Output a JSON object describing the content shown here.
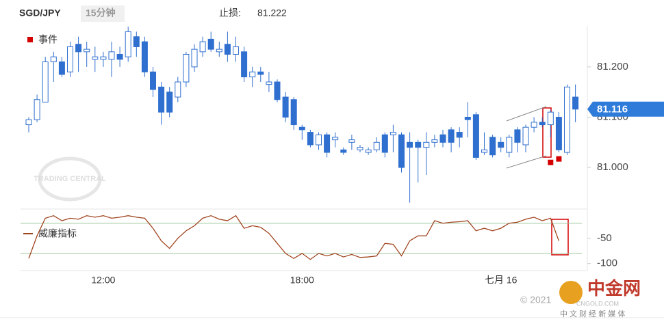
{
  "header": {
    "symbol": "SGD/JPY",
    "interval": "15分钟",
    "stop_label": "止损:",
    "stop_value": 81.222
  },
  "chart_data": [
    {
      "type": "candlestick",
      "legend": "事件",
      "color": "#2f6fcf",
      "event_color": "#d40000",
      "categories": [
        null,
        null,
        null,
        null,
        null,
        null,
        null,
        null,
        null,
        "12:00",
        null,
        null,
        null,
        null,
        null,
        null,
        null,
        null,
        null,
        null,
        null,
        null,
        null,
        null,
        null,
        null,
        null,
        null,
        null,
        null,
        null,
        null,
        null,
        "18:00",
        null,
        null,
        null,
        null,
        null,
        null,
        null,
        null,
        null,
        null,
        null,
        null,
        null,
        null,
        null,
        null,
        null,
        null,
        null,
        null,
        null,
        null,
        null,
        "七月 16",
        null,
        null,
        null,
        null,
        null,
        null,
        null,
        null,
        null
      ],
      "open": [
        81.085,
        81.095,
        81.13,
        81.21,
        81.21,
        81.19,
        81.245,
        81.23,
        81.215,
        81.215,
        81.215,
        81.225,
        81.22,
        81.26,
        81.25,
        81.19,
        81.16,
        81.15,
        81.14,
        81.17,
        81.2,
        81.23,
        81.255,
        81.23,
        81.245,
        81.225,
        81.23,
        81.18,
        81.19,
        81.165,
        81.17,
        81.14,
        81.135,
        81.08,
        81.07,
        81.045,
        81.065,
        81.055,
        81.035,
        81.05,
        81.035,
        81.03,
        81.035,
        81.065,
        81.065,
        81.065,
        81.05,
        81.05,
        81.04,
        81.05,
        81.065,
        81.075,
        81.07,
        81.1,
        81.105,
        81.03,
        81.06,
        81.05,
        81.03,
        81.075,
        81.045,
        81.08,
        81.09,
        81.085,
        81.1,
        81.03,
        81.14
      ],
      "high": [
        81.1,
        81.145,
        81.22,
        81.23,
        81.22,
        81.25,
        81.26,
        81.25,
        81.24,
        81.23,
        81.25,
        81.24,
        81.28,
        81.27,
        81.26,
        81.2,
        81.17,
        81.16,
        81.18,
        81.23,
        81.245,
        81.26,
        81.27,
        81.25,
        81.27,
        81.26,
        81.24,
        81.2,
        81.2,
        81.19,
        81.175,
        81.15,
        81.14,
        81.085,
        81.075,
        81.07,
        81.07,
        81.07,
        81.04,
        81.065,
        81.045,
        81.04,
        81.06,
        81.07,
        81.085,
        81.07,
        81.07,
        81.055,
        81.07,
        81.065,
        81.075,
        81.08,
        81.08,
        81.13,
        81.11,
        81.07,
        81.065,
        81.06,
        81.065,
        81.08,
        81.085,
        81.1,
        81.1,
        81.115,
        81.11,
        81.165,
        81.165
      ],
      "low": [
        81.07,
        81.09,
        81.13,
        81.17,
        81.18,
        81.18,
        81.19,
        81.2,
        81.19,
        81.2,
        81.18,
        81.2,
        81.21,
        81.22,
        81.18,
        81.14,
        81.085,
        81.1,
        81.13,
        81.16,
        81.19,
        81.22,
        81.23,
        81.22,
        81.21,
        81.21,
        81.17,
        81.16,
        81.17,
        81.15,
        81.13,
        81.09,
        81.075,
        81.055,
        81.04,
        81.035,
        81.02,
        81.04,
        81.025,
        81.035,
        81.03,
        81.025,
        81.03,
        81.02,
        81.03,
        80.99,
        80.93,
        80.97,
        80.985,
        81.04,
        81.04,
        81.03,
        81.04,
        81.06,
        81.015,
        81.025,
        81.02,
        81.03,
        81.02,
        81.03,
        81.03,
        81.07,
        81.08,
        81.06,
        81.03,
        81.025,
        81.09
      ],
      "close": [
        81.095,
        81.135,
        81.21,
        81.22,
        81.185,
        81.24,
        81.23,
        81.235,
        81.22,
        81.22,
        81.23,
        81.215,
        81.27,
        81.24,
        81.19,
        81.155,
        81.11,
        81.11,
        81.17,
        81.225,
        81.235,
        81.25,
        81.235,
        81.235,
        81.225,
        81.24,
        81.18,
        81.19,
        81.185,
        81.17,
        81.135,
        81.1,
        81.085,
        81.075,
        81.045,
        81.065,
        81.03,
        81.06,
        81.03,
        81.055,
        81.04,
        81.035,
        81.05,
        81.03,
        81.07,
        81.0,
        81.04,
        81.04,
        81.05,
        81.055,
        81.05,
        81.05,
        81.06,
        81.095,
        81.02,
        81.035,
        81.025,
        81.04,
        81.06,
        81.05,
        81.08,
        81.09,
        81.085,
        81.11,
        81.035,
        81.16,
        81.116
      ],
      "events": [
        {
          "index": 63,
          "value": 81.01
        },
        {
          "index": 64,
          "value": 81.017
        }
      ],
      "last_price": 81.116,
      "ylim": [
        80.92,
        81.28
      ],
      "yticks": [
        {
          "value": 81.2,
          "label": "81.200"
        },
        {
          "value": 81.1,
          "label": "81.100"
        },
        {
          "value": 81.0,
          "label": "81.000"
        }
      ]
    },
    {
      "type": "line",
      "legend": "威廉指标",
      "color": "#a0441e",
      "values": [
        -90,
        -45,
        -10,
        -5,
        -15,
        -10,
        -12,
        -5,
        -8,
        -5,
        -10,
        -8,
        -5,
        -8,
        -10,
        -30,
        -55,
        -70,
        -50,
        -35,
        -25,
        -10,
        -5,
        -12,
        -15,
        -5,
        -30,
        -25,
        -28,
        -40,
        -60,
        -80,
        -90,
        -80,
        -92,
        -80,
        -85,
        -80,
        -87,
        -82,
        -88,
        -87,
        -85,
        -60,
        -62,
        -85,
        -55,
        -45,
        -45,
        -15,
        -20,
        -18,
        -17,
        -15,
        -35,
        -30,
        -35,
        -30,
        -20,
        -18,
        -12,
        -8,
        -15,
        -10,
        -55,
        null,
        null
      ],
      "levels": [
        -20,
        -80
      ],
      "ylim": [
        -110,
        0
      ],
      "yticks": [
        -50,
        -100
      ]
    }
  ],
  "footer": {
    "copyright": "© 2021",
    "site": "中金网",
    "domain": "CNGOLD.COM",
    "slogan": "中 文 财 经 新 媒 体",
    "watermark": "TRADING CENTRAL"
  }
}
